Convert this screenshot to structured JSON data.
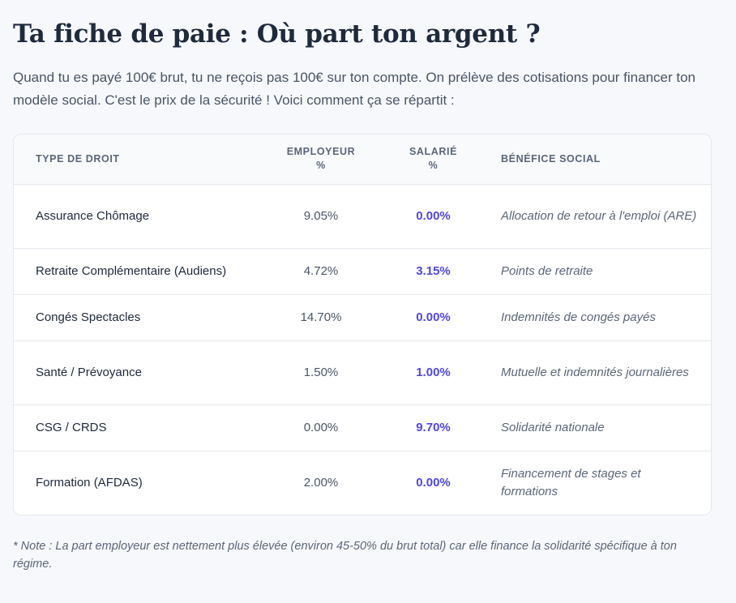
{
  "page": {
    "title": "Ta fiche de paie : Où part ton argent ?",
    "intro": "Quand tu es payé 100€ brut, tu ne reçois pas 100€ sur ton compte. On prélève des cotisations pour financer ton modèle social. C'est le prix de la sécurité ! Voici comment ça se répartit :"
  },
  "table": {
    "headers": {
      "type": "TYPE DE DROIT",
      "employer_line1": "EMPLOYEUR",
      "employer_line2": "%",
      "employee_line1": "SALARIÉ",
      "employee_line2": "%",
      "benefit": "BÉNÉFICE SOCIAL"
    },
    "rows": [
      {
        "type": "Assurance Chômage",
        "employer": "9.05%",
        "employee": "0.00%",
        "benefit": "Allocation de retour à l'emploi (ARE)"
      },
      {
        "type": "Retraite Complémentaire (Audiens)",
        "employer": "4.72%",
        "employee": "3.15%",
        "benefit": "Points de retraite"
      },
      {
        "type": "Congés Spectacles",
        "employer": "14.70%",
        "employee": "0.00%",
        "benefit": "Indemnités de congés payés"
      },
      {
        "type": "Santé / Prévoyance",
        "employer": "1.50%",
        "employee": "1.00%",
        "benefit": "Mutuelle et indemnités journalières"
      },
      {
        "type": "CSG / CRDS",
        "employer": "0.00%",
        "employee": "9.70%",
        "benefit": "Solidarité nationale"
      },
      {
        "type": "Formation (AFDAS)",
        "employer": "2.00%",
        "employee": "0.00%",
        "benefit": "Financement de stages et formations"
      }
    ]
  },
  "note": "* Note : La part employeur est nettement plus élevée (environ 45-50% du brut total) car elle finance la solidarité spécifique à ton régime.",
  "colors": {
    "background": "#f7f8fb",
    "accent_employee": "#4f46e5",
    "title": "#1f2a3c"
  }
}
